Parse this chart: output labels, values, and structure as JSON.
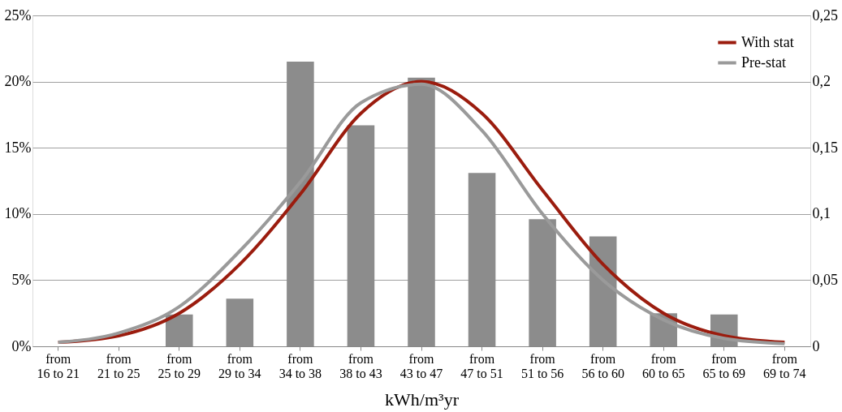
{
  "chart_data": {
    "type": "bar",
    "xlabel": "kWh/m³yr",
    "categories": [
      "from 16 to 21",
      "from 21 to 25",
      "from 25 to 29",
      "from 29 to 34",
      "from 34 to 38",
      "from 38 to 43",
      "from 43 to 47",
      "from 47 to 51",
      "from 51 to 56",
      "from 56 to 60",
      "from 60 to 65",
      "from 65 to 69",
      "from 69 to 74"
    ],
    "series": [
      {
        "color": "#8c8c8c",
        "values": [
          0,
          0,
          2.4,
          3.6,
          21.5,
          16.7,
          20.3,
          13.1,
          9.6,
          8.3,
          2.5,
          2.4,
          0
        ]
      },
      {
        "type": "line",
        "name": "With stat",
        "axis": "y2",
        "color": "#9b1c0e",
        "values": [
          0.003,
          0.008,
          0.025,
          0.062,
          0.115,
          0.176,
          0.2,
          0.176,
          0.118,
          0.062,
          0.025,
          0.008,
          0.003
        ]
      },
      {
        "type": "line",
        "name": "Pre-stat",
        "axis": "y2",
        "color": "#9a9a9a",
        "values": [
          0.003,
          0.01,
          0.03,
          0.072,
          0.124,
          0.184,
          0.198,
          0.163,
          0.1,
          0.05,
          0.02,
          0.006,
          0.002
        ]
      }
    ],
    "ylim": [
      0,
      25
    ],
    "yticks": [
      {
        "value": 0,
        "label": "0%"
      },
      {
        "value": 5,
        "label": "5%"
      },
      {
        "value": 10,
        "label": "10%"
      },
      {
        "value": 15,
        "label": "15%"
      },
      {
        "value": 20,
        "label": "20%"
      },
      {
        "value": 25,
        "label": "25%"
      }
    ],
    "y2lim": [
      0,
      0.25
    ],
    "y2ticks": [
      0,
      {
        "value": 0.05,
        "label": "0,05"
      },
      {
        "value": 0.1,
        "label": "0,1"
      },
      {
        "value": 0.15,
        "label": "0,15"
      },
      {
        "value": 0.2,
        "label": "0,2"
      },
      {
        "value": 0.25,
        "label": "0,25"
      }
    ],
    "grid": "y",
    "legend": "top right",
    "marker": "none",
    "line_style": "solid"
  }
}
